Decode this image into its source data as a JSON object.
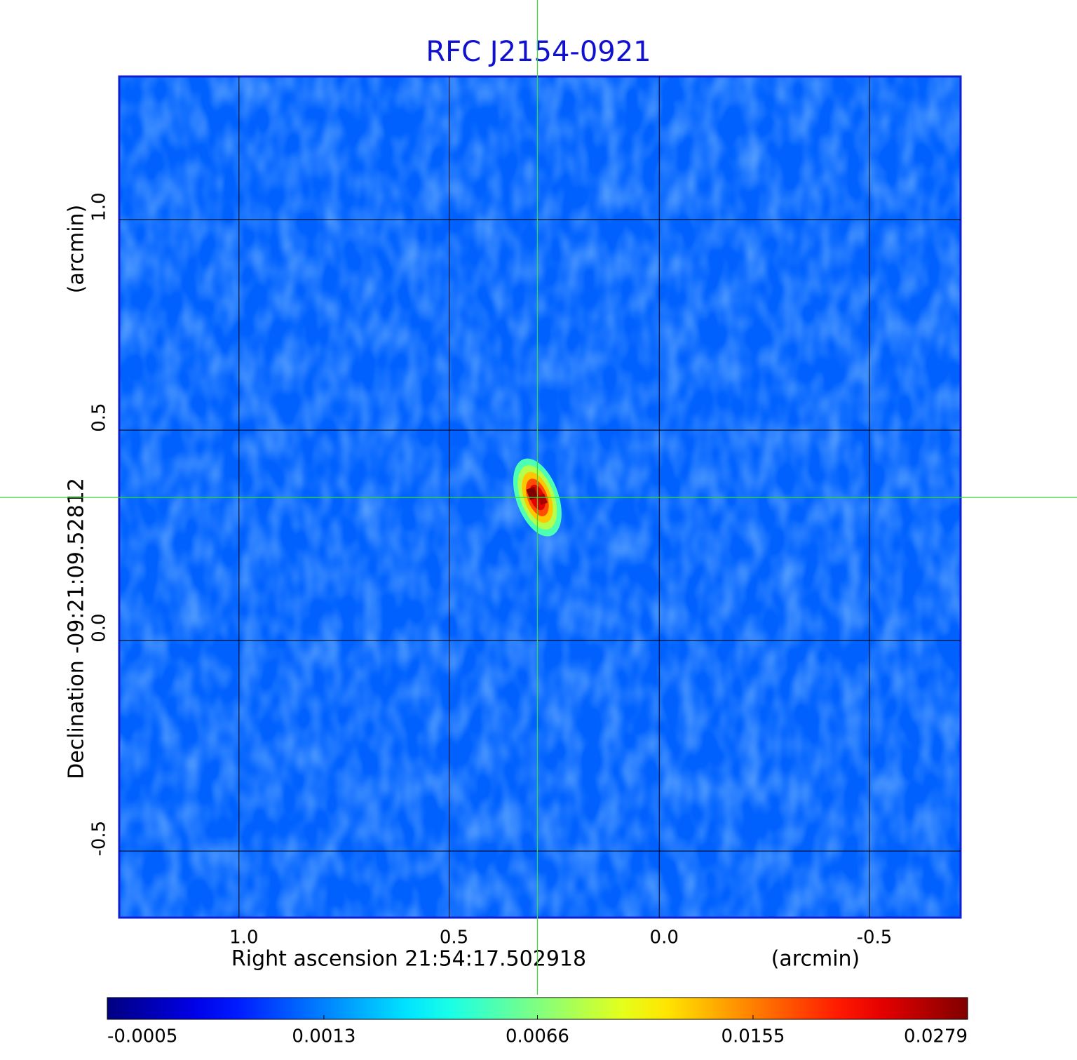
{
  "chart_data": {
    "type": "image",
    "title": "RFC J2154-0921",
    "x_label": "Right ascension  21:54:17.502918",
    "x_unit": "(arcmin)",
    "y_label": "Declination  -09:21:09.52812",
    "y_unit": "(arcmin)",
    "xlim": [
      1.285,
      -0.717
    ],
    "ylim": [
      -0.658,
      1.34
    ],
    "xticks": [
      {
        "value": 1,
        "label": "1.0"
      },
      0.5,
      {
        "value": 0,
        "label": "0.0"
      },
      -0.5
    ],
    "yticks": [
      -0.5,
      {
        "value": 0,
        "label": "0.0"
      },
      0.5,
      {
        "value": 1,
        "label": "1.0"
      }
    ],
    "grid": true,
    "colorbar": {
      "scale": "sqrt",
      "colormap": "jet",
      "lim": [
        -0.0005,
        0.0279
      ],
      "ticks": [
        -0.0005,
        0.0013,
        0.0066,
        0.0155,
        0.0279
      ]
    },
    "source": {
      "x": 0.29,
      "y": 0.34,
      "peak": 0.0279
    },
    "crosshair_color": "#33dd33"
  }
}
